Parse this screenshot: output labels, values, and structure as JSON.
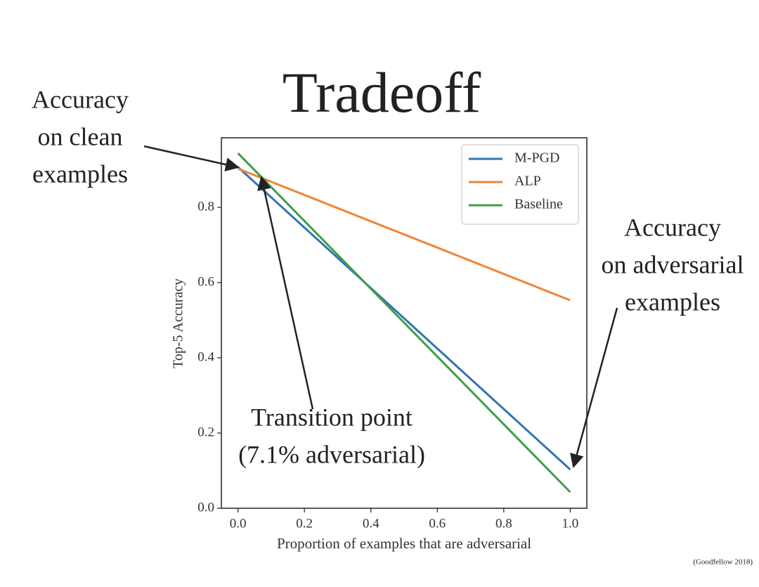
{
  "title": "Tradeoff",
  "citation": "(Goodfellow 2018)",
  "annotations": [
    {
      "lines": [
        "Accuracy",
        "on clean",
        "examples"
      ]
    },
    {
      "lines": [
        "Accuracy",
        "on adversarial",
        "examples"
      ]
    },
    {
      "lines": [
        "Transition point",
        "(7.1% adversarial)"
      ]
    }
  ],
  "chart_data": {
    "type": "line",
    "xlabel": "Proportion of examples that are adversarial",
    "ylabel": "Top-5 Accuracy",
    "x": [
      0,
      1
    ],
    "series": [
      {
        "name": "M-PGD",
        "color": "#3274b5",
        "values": [
          0.907,
          0.103
        ]
      },
      {
        "name": "ALP",
        "color": "#ef8536",
        "values": [
          0.903,
          0.553
        ]
      },
      {
        "name": "Baseline",
        "color": "#3d9e47",
        "values": [
          0.944,
          0.043
        ]
      }
    ],
    "xlim": [
      -0.05,
      1.05
    ],
    "ylim": [
      0,
      0.985
    ],
    "xticks": [
      {
        "value": 0,
        "label": "0.0"
      },
      0.2,
      0.4,
      0.6,
      0.8,
      {
        "value": 1,
        "label": "1.0"
      }
    ],
    "yticks": [
      {
        "value": 0,
        "label": "0.0"
      },
      0.2,
      0.4,
      0.6,
      0.8
    ],
    "legend": "upper right",
    "grid": false
  }
}
